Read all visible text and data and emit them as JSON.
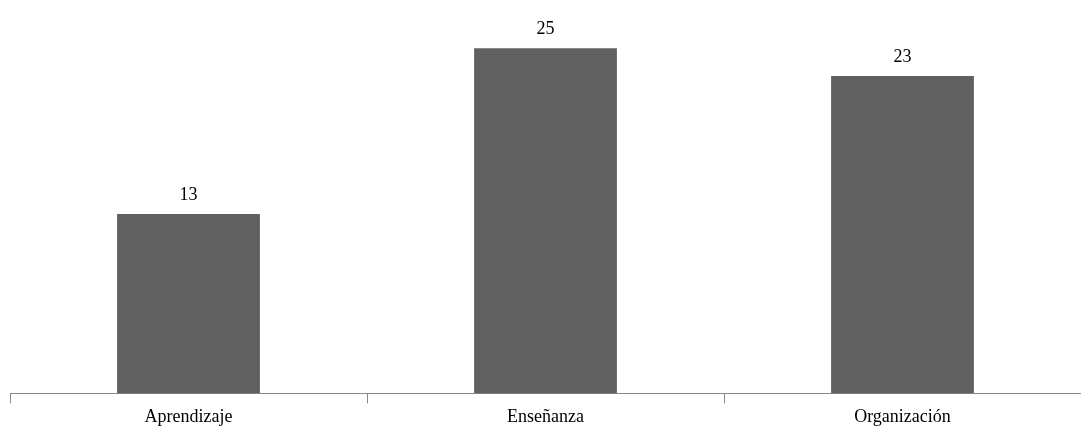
{
  "chart_data": {
    "type": "bar",
    "categories": [
      "Aprendizaje",
      "Enseñanza",
      "Organización"
    ],
    "values": [
      13,
      25,
      23
    ],
    "color": "#606060",
    "data_labels": true,
    "grid": false,
    "legend": false,
    "tick_labels": "x"
  }
}
